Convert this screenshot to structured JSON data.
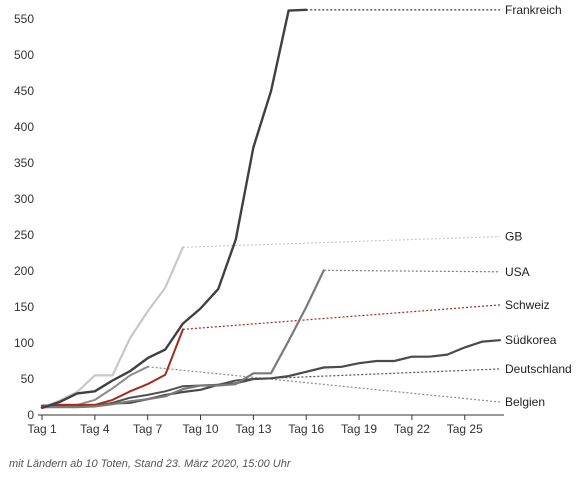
{
  "footnote": "mit Ländern ab 10 Toten, Stand 23. März 2020, 15:00 Uhr",
  "chart_data": {
    "type": "line",
    "xlim": [
      1,
      27
    ],
    "ylim": [
      0,
      560
    ],
    "y_ticks": [
      0,
      50,
      100,
      150,
      200,
      250,
      300,
      350,
      400,
      450,
      500,
      550
    ],
    "x_ticks": [
      {
        "value": 1,
        "label": "Tag 1"
      },
      {
        "value": 4,
        "label": "Tag 4"
      },
      {
        "value": 7,
        "label": "Tag 7"
      },
      {
        "value": 10,
        "label": "Tag 10"
      },
      {
        "value": 13,
        "label": "Tag 13"
      },
      {
        "value": 16,
        "label": "Tag 16"
      },
      {
        "value": 19,
        "label": "Tag 19"
      },
      {
        "value": 22,
        "label": "Tag 22"
      },
      {
        "value": 25,
        "label": "Tag 25"
      }
    ],
    "grid": false,
    "series": [
      {
        "name": "Südkorea",
        "color": "#4a4a4a",
        "width": 2.2,
        "x": [
          1,
          2,
          3,
          4,
          5,
          6,
          7,
          8,
          9,
          10,
          11,
          12,
          13,
          14,
          15,
          16,
          17,
          18,
          19,
          20,
          21,
          22,
          23,
          24,
          25,
          26,
          27
        ],
        "y": [
          11,
          12,
          13,
          13,
          16,
          17,
          22,
          28,
          32,
          35,
          42,
          44,
          50,
          51,
          54,
          60,
          66,
          67,
          72,
          75,
          75,
          81,
          81,
          84,
          94,
          102,
          104
        ],
        "projection": null
      },
      {
        "name": "Deutschland",
        "color": "#505050",
        "width": 2,
        "x": [
          1,
          2,
          3,
          4,
          5,
          6,
          7,
          8,
          9,
          10,
          11,
          12,
          13
        ],
        "y": [
          12,
          12,
          12,
          12,
          17,
          24,
          28,
          33,
          40,
          41,
          42,
          48,
          50
        ],
        "projection": {
          "from": 13,
          "value": 50,
          "to": 27,
          "to_value": 64
        }
      },
      {
        "name": "Belgien",
        "color": "#8c8c8c",
        "width": 2,
        "x": [
          1,
          2,
          3,
          4,
          5,
          6,
          7
        ],
        "y": [
          10,
          14,
          14,
          21,
          37,
          55,
          67
        ],
        "projection": {
          "from": 7,
          "value": 67,
          "to": 27,
          "to_value": 18
        }
      },
      {
        "name": "Schweiz",
        "color": "#a52a1b",
        "width": 2,
        "x": [
          1,
          2,
          3,
          4,
          5,
          6,
          7,
          8,
          9
        ],
        "y": [
          13,
          14,
          14,
          14,
          21,
          33,
          43,
          56,
          119
        ],
        "projection": {
          "from": 9,
          "value": 119,
          "to": 27,
          "to_value": 153
        }
      },
      {
        "name": "USA",
        "color": "#7a7a7a",
        "width": 2.2,
        "x": [
          1,
          2,
          3,
          4,
          5,
          6,
          7,
          8,
          9,
          10,
          11,
          12,
          13,
          14,
          15,
          16,
          17
        ],
        "y": [
          11,
          11,
          11,
          12,
          15,
          19,
          22,
          26,
          36,
          41,
          41,
          43,
          58,
          58,
          103,
          150,
          201
        ],
        "projection": {
          "from": 17,
          "value": 201,
          "to": 27,
          "to_value": 199
        }
      },
      {
        "name": "GB",
        "color": "#c8c8c8",
        "width": 2.2,
        "x": [
          1,
          2,
          3,
          4,
          5,
          6,
          7,
          8,
          9
        ],
        "y": [
          10,
          20,
          32,
          55,
          55,
          107,
          144,
          177,
          233
        ],
        "projection": {
          "from": 9,
          "value": 233,
          "to": 27,
          "to_value": 248
        }
      },
      {
        "name": "Frankreich",
        "color": "#404040",
        "width": 2.4,
        "x": [
          1,
          2,
          3,
          4,
          5,
          6,
          7,
          8,
          9,
          10,
          11,
          12,
          13,
          14,
          15,
          16
        ],
        "y": [
          10,
          18,
          30,
          33,
          48,
          61,
          79,
          91,
          127,
          148,
          175,
          244,
          372,
          450,
          562,
          563
        ],
        "projection": {
          "from": 16,
          "value": 563,
          "to": 27,
          "to_value": 563
        }
      }
    ]
  }
}
